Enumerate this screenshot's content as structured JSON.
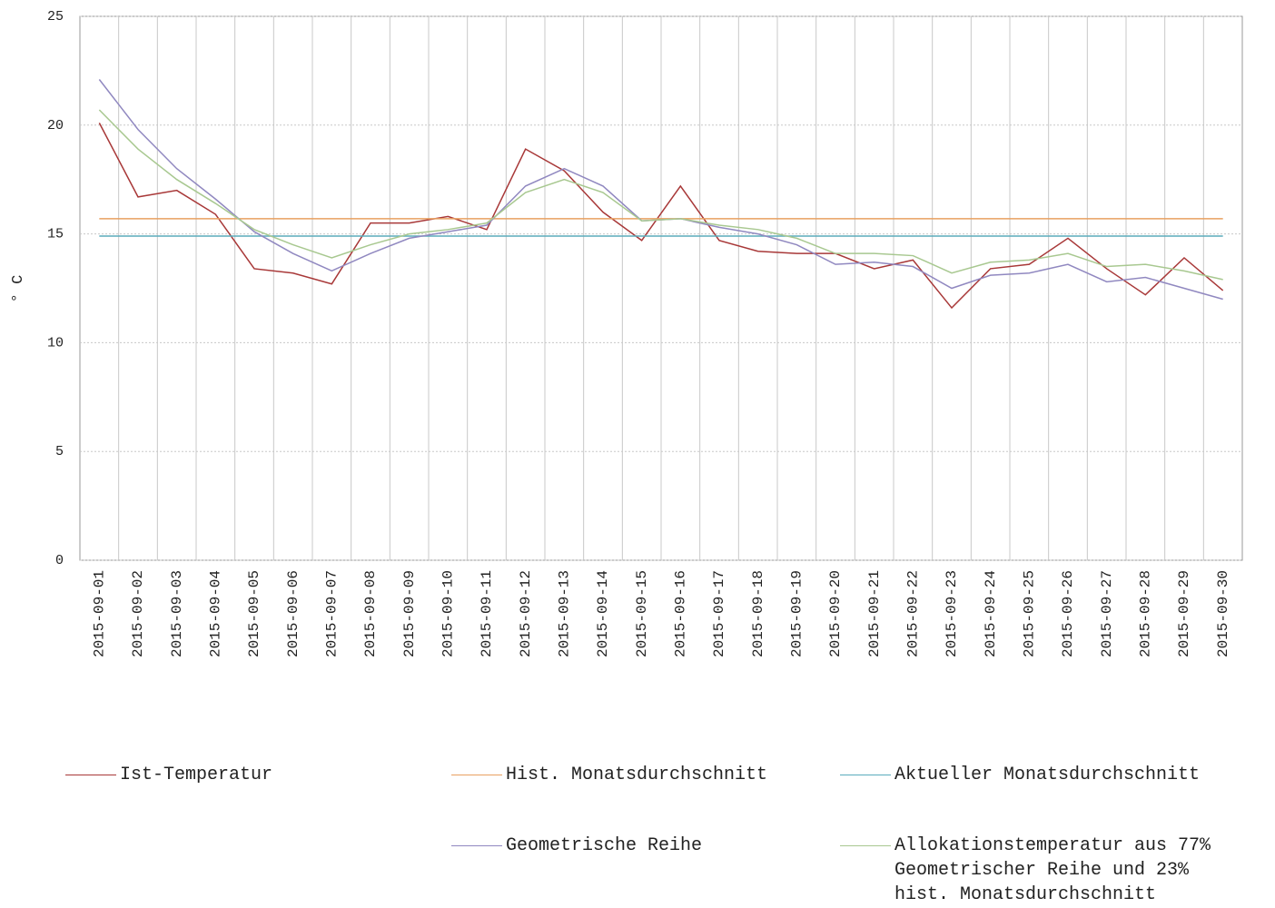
{
  "chart_data": {
    "type": "line",
    "ylabel": "° C",
    "categories": [
      "2015-09-01",
      "2015-09-02",
      "2015-09-03",
      "2015-09-04",
      "2015-09-05",
      "2015-09-06",
      "2015-09-07",
      "2015-09-08",
      "2015-09-09",
      "2015-09-10",
      "2015-09-11",
      "2015-09-12",
      "2015-09-13",
      "2015-09-14",
      "2015-09-15",
      "2015-09-16",
      "2015-09-17",
      "2015-09-18",
      "2015-09-19",
      "2015-09-20",
      "2015-09-21",
      "2015-09-22",
      "2015-09-23",
      "2015-09-24",
      "2015-09-25",
      "2015-09-26",
      "2015-09-27",
      "2015-09-28",
      "2015-09-29",
      "2015-09-30"
    ],
    "ylim": [
      0,
      25
    ],
    "yticks": [
      0,
      5,
      10,
      15,
      20,
      25
    ],
    "grid": true,
    "series": [
      {
        "name": "Ist-Temperatur",
        "color": "#a83838",
        "values": [
          20.1,
          16.7,
          17.0,
          15.9,
          13.4,
          13.2,
          12.7,
          15.5,
          15.5,
          15.8,
          15.2,
          18.9,
          17.9,
          16.0,
          14.7,
          17.2,
          14.7,
          14.2,
          14.1,
          14.1,
          13.4,
          13.8,
          11.6,
          13.4,
          13.6,
          14.8,
          13.4,
          12.2,
          13.9,
          12.4
        ]
      },
      {
        "name": "Hist. Monatsdurchschnitt",
        "color": "#e8a060",
        "values": [
          15.7,
          15.7,
          15.7,
          15.7,
          15.7,
          15.7,
          15.7,
          15.7,
          15.7,
          15.7,
          15.7,
          15.7,
          15.7,
          15.7,
          15.7,
          15.7,
          15.7,
          15.7,
          15.7,
          15.7,
          15.7,
          15.7,
          15.7,
          15.7,
          15.7,
          15.7,
          15.7,
          15.7,
          15.7,
          15.7
        ]
      },
      {
        "name": "Aktueller Monatsdurchschnitt",
        "color": "#5aacbc",
        "values": [
          14.9,
          14.9,
          14.9,
          14.9,
          14.9,
          14.9,
          14.9,
          14.9,
          14.9,
          14.9,
          14.9,
          14.9,
          14.9,
          14.9,
          14.9,
          14.9,
          14.9,
          14.9,
          14.9,
          14.9,
          14.9,
          14.9,
          14.9,
          14.9,
          14.9,
          14.9,
          14.9,
          14.9,
          14.9,
          14.9
        ]
      },
      {
        "name": "Geometrische Reihe",
        "color": "#9088c0",
        "values": [
          22.1,
          19.8,
          18.0,
          16.6,
          15.1,
          14.1,
          13.3,
          14.1,
          14.8,
          15.1,
          15.4,
          17.2,
          18.0,
          17.2,
          15.6,
          15.7,
          15.3,
          15.0,
          14.5,
          13.6,
          13.7,
          13.5,
          12.5,
          13.1,
          13.2,
          13.6,
          12.8,
          13.0,
          12.5,
          12.0
        ]
      },
      {
        "name": "Allokationstemperatur aus 77%\nGeometrischer Reihe und 23%\nhist. Monatsdurchschnitt",
        "color": "#a8c890",
        "values": [
          20.7,
          18.9,
          17.5,
          16.4,
          15.2,
          14.5,
          13.9,
          14.5,
          15.0,
          15.2,
          15.5,
          16.9,
          17.5,
          16.9,
          15.6,
          15.7,
          15.4,
          15.2,
          14.8,
          14.1,
          14.1,
          14.0,
          13.2,
          13.7,
          13.8,
          14.1,
          13.5,
          13.6,
          13.3,
          12.9
        ]
      }
    ]
  }
}
